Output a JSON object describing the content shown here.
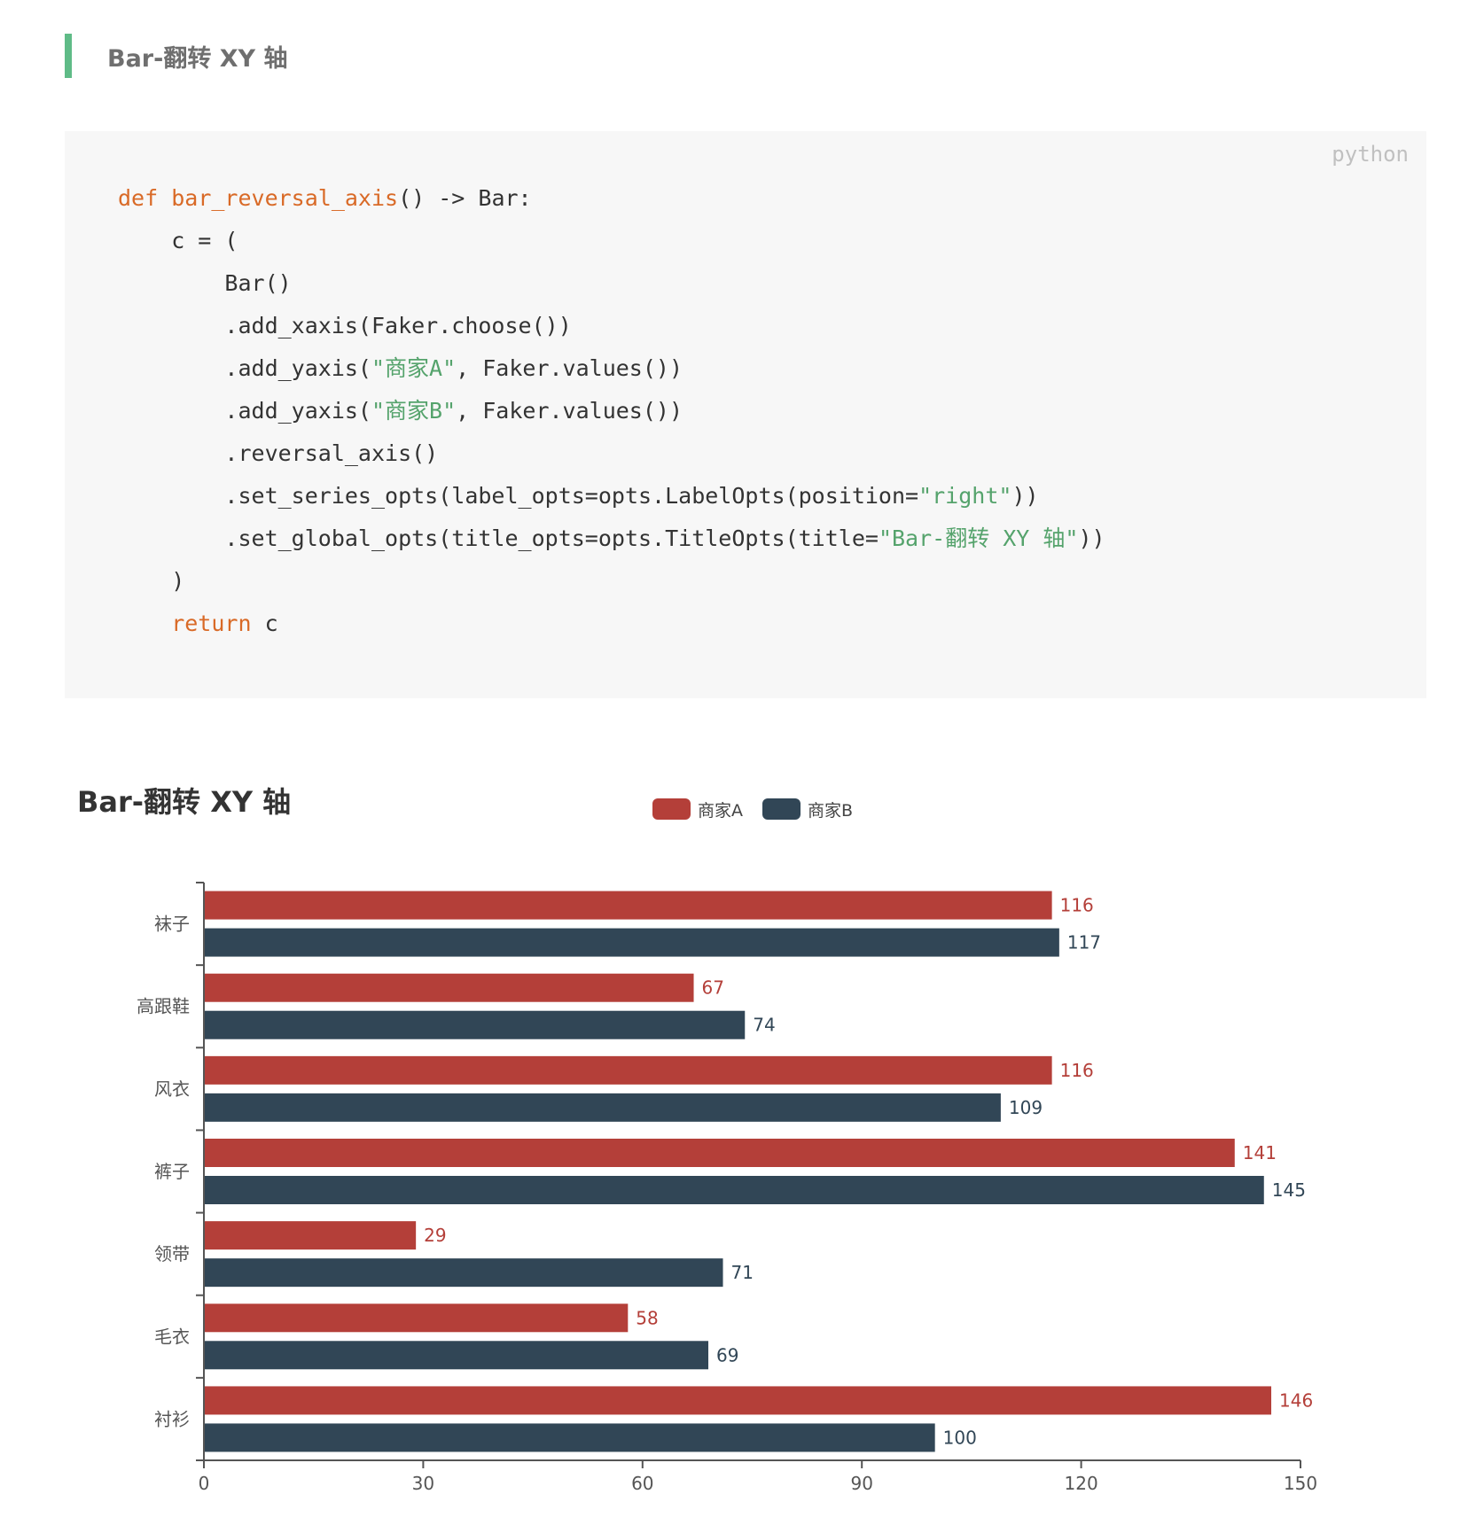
{
  "section_heading": "Bar-翻转 XY 轴",
  "code": {
    "language": "python",
    "lines": [
      [
        {
          "t": "keyword",
          "v": "def "
        },
        {
          "t": "function",
          "v": "bar_reversal_axis"
        },
        {
          "t": "plain",
          "v": "() -> Bar:"
        }
      ],
      [
        {
          "t": "plain",
          "v": "    c = ("
        }
      ],
      [
        {
          "t": "plain",
          "v": "        Bar()"
        }
      ],
      [
        {
          "t": "plain",
          "v": "        .add_xaxis(Faker.choose())"
        }
      ],
      [
        {
          "t": "plain",
          "v": "        .add_yaxis("
        },
        {
          "t": "string",
          "v": "\"商家A\""
        },
        {
          "t": "plain",
          "v": ", Faker.values())"
        }
      ],
      [
        {
          "t": "plain",
          "v": "        .add_yaxis("
        },
        {
          "t": "string",
          "v": "\"商家B\""
        },
        {
          "t": "plain",
          "v": ", Faker.values())"
        }
      ],
      [
        {
          "t": "plain",
          "v": "        .reversal_axis()"
        }
      ],
      [
        {
          "t": "plain",
          "v": "        .set_series_opts(label_opts=opts.LabelOpts(position="
        },
        {
          "t": "string",
          "v": "\"right\""
        },
        {
          "t": "plain",
          "v": "))"
        }
      ],
      [
        {
          "t": "plain",
          "v": "        .set_global_opts(title_opts=opts.TitleOpts(title="
        },
        {
          "t": "string",
          "v": "\"Bar-翻转 XY 轴\""
        },
        {
          "t": "plain",
          "v": "))"
        }
      ],
      [
        {
          "t": "plain",
          "v": "    )"
        }
      ],
      [
        {
          "t": "keyword",
          "v": "    return"
        },
        {
          "t": "plain",
          "v": " c"
        }
      ]
    ]
  },
  "colors": {
    "series_a": "#b43f39",
    "series_b": "#314656",
    "axis": "#555555",
    "tick_label": "#555555",
    "title": "#333333",
    "legend_text": "#444444"
  },
  "chart_data": {
    "type": "bar",
    "orientation": "horizontal",
    "title": "Bar-翻转 XY 轴",
    "categories": [
      "衬衫",
      "毛衣",
      "领带",
      "裤子",
      "风衣",
      "高跟鞋",
      "袜子"
    ],
    "series": [
      {
        "name": "商家A",
        "values": [
          146,
          58,
          29,
          141,
          116,
          67,
          116
        ]
      },
      {
        "name": "商家B",
        "values": [
          100,
          69,
          71,
          145,
          109,
          74,
          117
        ]
      }
    ],
    "xlim": [
      0,
      150
    ],
    "xticks": [
      0,
      30,
      60,
      90,
      120,
      150
    ],
    "label_position": "right",
    "legend_position": "top-center",
    "grid": false
  }
}
